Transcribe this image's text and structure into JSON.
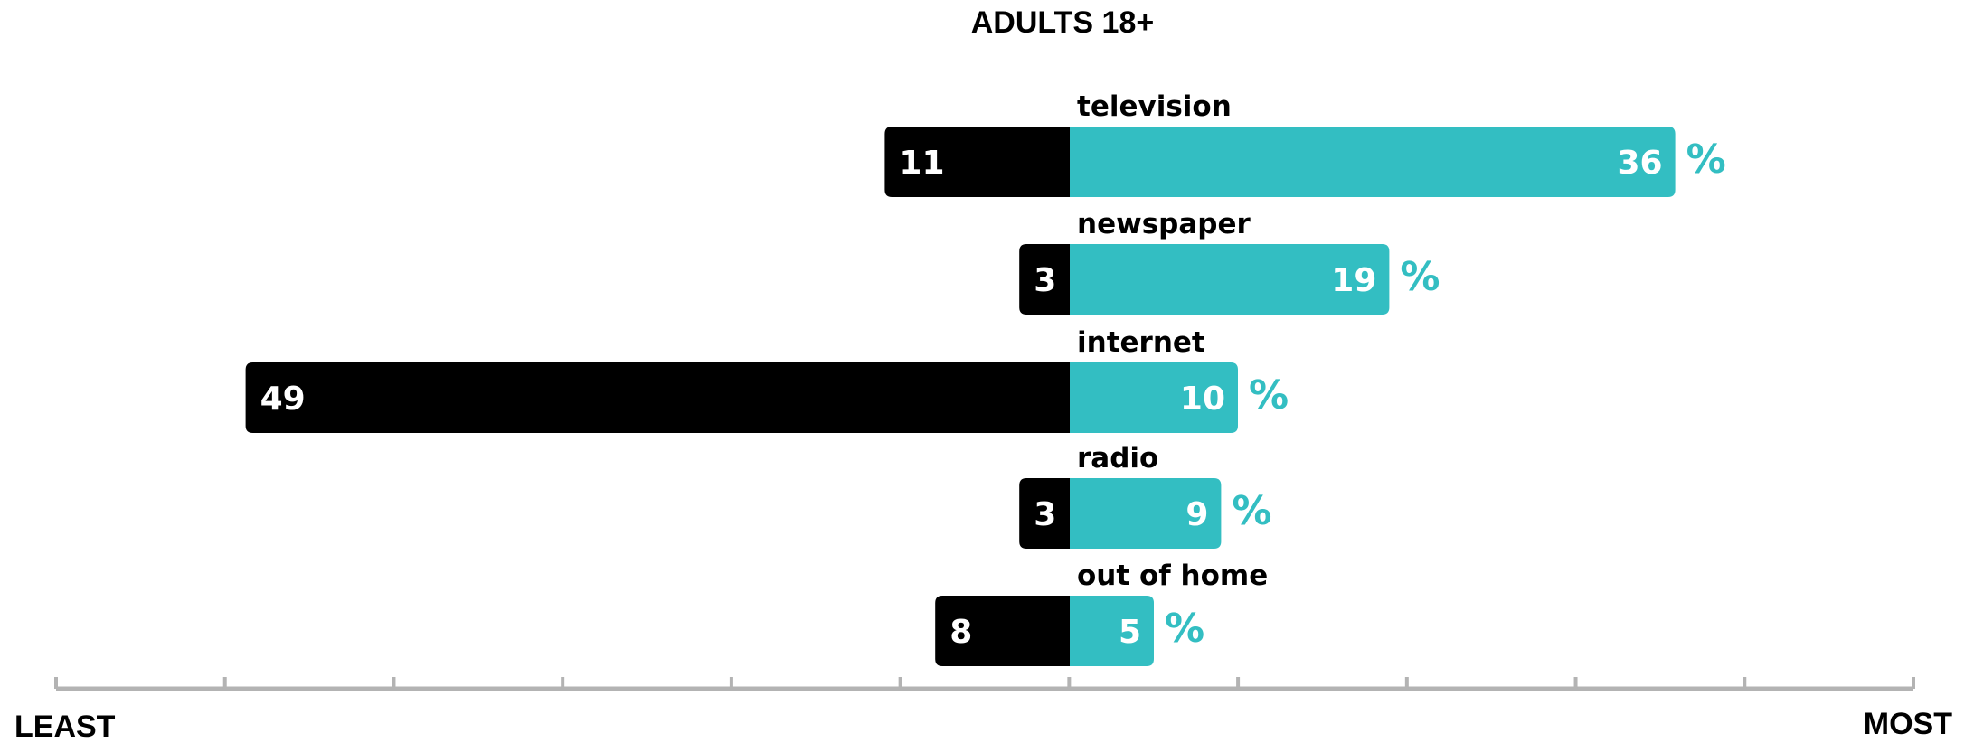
{
  "chart_data": {
    "type": "bar",
    "title": "ADULTS 18+",
    "categories": [
      "television",
      "newspaper",
      "internet",
      "radio",
      "out of home"
    ],
    "series": [
      {
        "values": [
          11,
          3,
          49,
          3,
          8
        ],
        "color": "#000000"
      },
      {
        "values": [
          36,
          19,
          10,
          9,
          5
        ],
        "color": "#33bec2"
      }
    ],
    "unit": "%",
    "axis": {
      "ticks": 12,
      "left_label": "LEAST",
      "right_label": "MOST",
      "color": "#b3b3b3"
    },
    "colors": {
      "least": "#000000",
      "most": "#33bec2",
      "value_text": "#ffffff",
      "unit_text": "#33bec2"
    }
  }
}
